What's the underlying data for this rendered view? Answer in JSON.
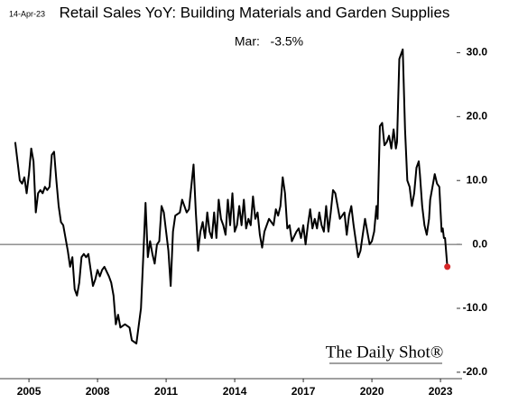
{
  "chart_data": {
    "type": "line",
    "date": "14-Apr-23",
    "title": "Retail Sales YoY: Building Materials and Garden Supplies",
    "annotation": "Mar:   -3.5%",
    "source": "The Daily Shot®",
    "x": [
      2004.4,
      2004.5,
      2004.6,
      2004.7,
      2004.8,
      2004.9,
      2005.0,
      2005.1,
      2005.2,
      2005.3,
      2005.4,
      2005.5,
      2005.6,
      2005.7,
      2005.8,
      2005.9,
      2006.0,
      2006.1,
      2006.2,
      2006.3,
      2006.4,
      2006.5,
      2006.6,
      2006.7,
      2006.8,
      2006.9,
      2007.0,
      2007.1,
      2007.2,
      2007.3,
      2007.4,
      2007.5,
      2007.6,
      2007.7,
      2007.8,
      2007.9,
      2008.0,
      2008.1,
      2008.2,
      2008.3,
      2008.5,
      2008.6,
      2008.7,
      2008.8,
      2008.9,
      2009.0,
      2009.2,
      2009.4,
      2009.5,
      2009.7,
      2009.9,
      2010.0,
      2010.1,
      2010.2,
      2010.3,
      2010.4,
      2010.5,
      2010.6,
      2010.7,
      2010.8,
      2010.9,
      2011.0,
      2011.1,
      2011.2,
      2011.3,
      2011.4,
      2011.6,
      2011.7,
      2011.8,
      2011.9,
      2012.0,
      2012.1,
      2012.2,
      2012.3,
      2012.4,
      2012.5,
      2012.6,
      2012.7,
      2012.8,
      2012.9,
      2013.0,
      2013.1,
      2013.2,
      2013.3,
      2013.4,
      2013.5,
      2013.6,
      2013.7,
      2013.8,
      2013.9,
      2014.0,
      2014.1,
      2014.2,
      2014.3,
      2014.4,
      2014.5,
      2014.6,
      2014.7,
      2014.8,
      2014.9,
      2015.0,
      2015.1,
      2015.2,
      2015.3,
      2015.5,
      2015.7,
      2015.8,
      2015.9,
      2016.0,
      2016.1,
      2016.2,
      2016.3,
      2016.4,
      2016.5,
      2016.7,
      2016.8,
      2016.9,
      2017.0,
      2017.1,
      2017.2,
      2017.3,
      2017.4,
      2017.5,
      2017.6,
      2017.7,
      2017.8,
      2017.9,
      2018.0,
      2018.1,
      2018.2,
      2018.3,
      2018.4,
      2018.5,
      2018.6,
      2018.7,
      2018.8,
      2018.9,
      2019.0,
      2019.1,
      2019.2,
      2019.3,
      2019.4,
      2019.5,
      2019.6,
      2019.7,
      2019.8,
      2019.9,
      2020.0,
      2020.1,
      2020.2,
      2020.25,
      2020.35,
      2020.45,
      2020.55,
      2020.65,
      2020.75,
      2020.85,
      2020.95,
      2021.05,
      2021.1,
      2021.2,
      2021.3,
      2021.35,
      2021.45,
      2021.55,
      2021.65,
      2021.75,
      2021.85,
      2021.95,
      2022.05,
      2022.1,
      2022.2,
      2022.3,
      2022.4,
      2022.5,
      2022.55,
      2022.65,
      2022.75,
      2022.85,
      2022.95,
      2023.05,
      2023.1,
      2023.15,
      2023.2,
      2023.3
    ],
    "series": [
      {
        "color": "#000000",
        "values": [
          16,
          13,
          10,
          9.5,
          10.5,
          8,
          11,
          15,
          13,
          5,
          8,
          8.5,
          8,
          9,
          8.5,
          9,
          14,
          14.5,
          10,
          6,
          3.5,
          3,
          1,
          -1,
          -3.5,
          -2,
          -7,
          -8,
          -6,
          -2,
          -1.5,
          -2,
          -1.5,
          -4,
          -6.5,
          -5.5,
          -4,
          -5,
          -4,
          -3.5,
          -5,
          -6,
          -8,
          -12.5,
          -11,
          -13,
          -12.5,
          -13,
          -15,
          -15.5,
          -10,
          -2,
          6.5,
          -2,
          0.5,
          -1.5,
          -3,
          0,
          0.5,
          6,
          5,
          2,
          -1,
          -6.5,
          2,
          4.5,
          5,
          7,
          6,
          5,
          5.5,
          9,
          12.5,
          5,
          -1,
          2,
          3.5,
          1,
          5,
          2,
          1,
          5,
          1,
          7,
          4,
          3,
          1.5,
          7,
          3,
          8,
          2,
          3,
          6,
          3,
          7,
          2.5,
          4,
          3,
          7.5,
          4,
          5,
          1.5,
          -0.5,
          2,
          4,
          3,
          5.5,
          4.5,
          6,
          10.5,
          8,
          2.5,
          3,
          0.5,
          2,
          2.5,
          1,
          3,
          0,
          3,
          5.5,
          2.5,
          4,
          2.5,
          5,
          3,
          2,
          6,
          2,
          5,
          8.5,
          8,
          6,
          4,
          4.5,
          5,
          1.5,
          4.5,
          6,
          3,
          0.5,
          -2,
          -1,
          1.5,
          4,
          2,
          0,
          0.5,
          2,
          6,
          4,
          18.5,
          19,
          15.5,
          16,
          17,
          15,
          18,
          15,
          16,
          29,
          30,
          30.5,
          18,
          10,
          9,
          6,
          8,
          12,
          13,
          11,
          6,
          3,
          1.5,
          4,
          7,
          9,
          11,
          9.5,
          9,
          2,
          2.5,
          1,
          1,
          -3.5
        ]
      }
    ],
    "marker_color": "#d62728",
    "xlim": [
      2004.05,
      2023.55
    ],
    "xticks": [
      2005,
      2008,
      2011,
      2014,
      2017,
      2020,
      2023
    ],
    "ylim": [
      -21,
      34
    ],
    "yticks": [
      {
        "value": 30,
        "label": "30.0"
      },
      {
        "value": 20,
        "label": "20.0"
      },
      {
        "value": 10,
        "label": "10.0"
      },
      {
        "value": 0,
        "label": "0.0"
      },
      {
        "value": -10,
        "label": "-10.0"
      },
      {
        "value": -20,
        "label": "-20.0"
      }
    ]
  }
}
